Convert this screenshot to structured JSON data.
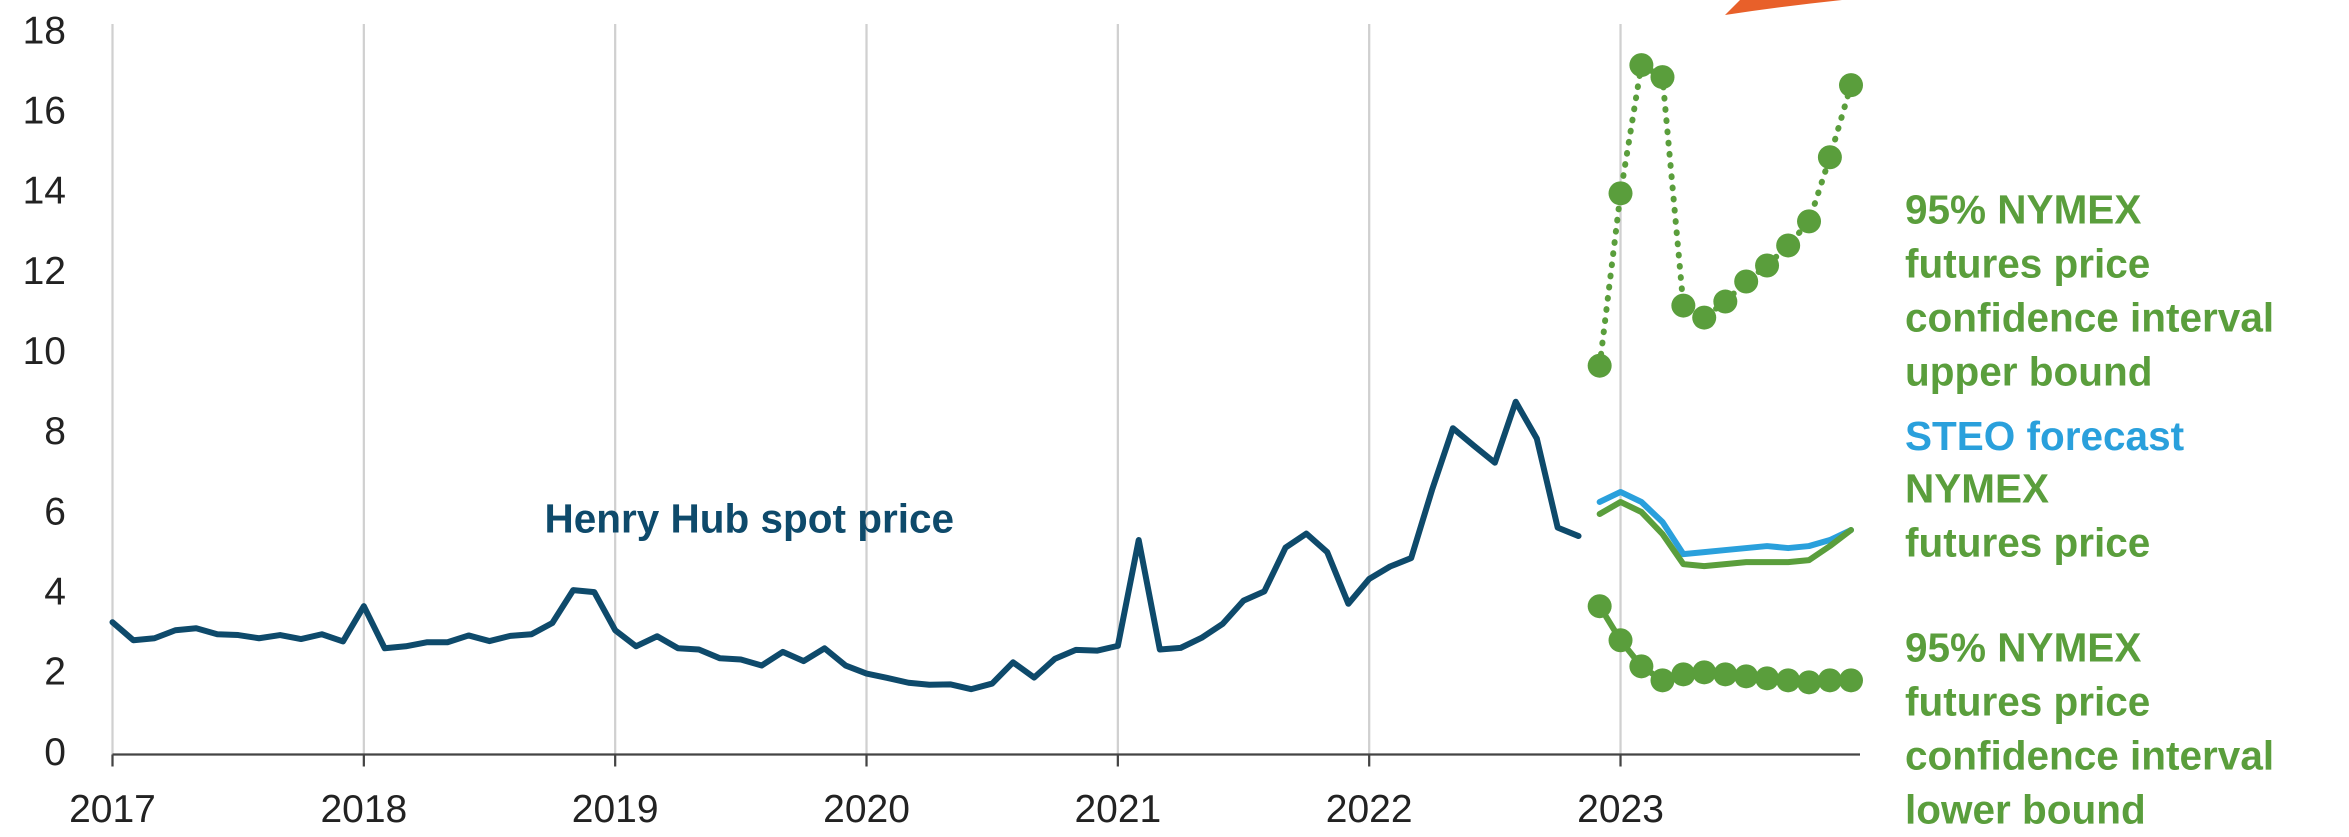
{
  "chart_data": {
    "type": "line",
    "x": [
      2017,
      2017.083,
      2017.167,
      2017.25,
      2017.333,
      2017.417,
      2017.5,
      2017.583,
      2017.667,
      2017.75,
      2017.833,
      2017.917,
      2018,
      2018.083,
      2018.167,
      2018.25,
      2018.333,
      2018.417,
      2018.5,
      2018.583,
      2018.667,
      2018.75,
      2018.833,
      2018.917,
      2019,
      2019.083,
      2019.167,
      2019.25,
      2019.333,
      2019.417,
      2019.5,
      2019.583,
      2019.667,
      2019.75,
      2019.833,
      2019.917,
      2020,
      2020.083,
      2020.167,
      2020.25,
      2020.333,
      2020.417,
      2020.5,
      2020.583,
      2020.667,
      2020.75,
      2020.833,
      2020.917,
      2021,
      2021.083,
      2021.167,
      2021.25,
      2021.333,
      2021.417,
      2021.5,
      2021.583,
      2021.667,
      2021.75,
      2021.833,
      2021.917,
      2022,
      2022.083,
      2022.167,
      2022.25,
      2022.333,
      2022.417,
      2022.5,
      2022.583,
      2022.667,
      2022.75,
      2022.833,
      2022.917,
      2023,
      2023.083,
      2023.167,
      2023.25,
      2023.333,
      2023.417,
      2023.5,
      2023.583,
      2023.667,
      2023.75,
      2023.833,
      2023.917
    ],
    "series": [
      {
        "label": [
          "Henry Hub spot price"
        ],
        "color": "#0e4a6b",
        "style": "solid",
        "values": [
          3.3,
          2.85,
          2.9,
          3.1,
          3.15,
          3.0,
          2.98,
          2.9,
          2.98,
          2.88,
          3.0,
          2.82,
          3.7,
          2.65,
          2.7,
          2.8,
          2.8,
          2.97,
          2.83,
          2.96,
          3.0,
          3.28,
          4.1,
          4.05,
          3.1,
          2.7,
          2.95,
          2.65,
          2.62,
          2.4,
          2.37,
          2.22,
          2.56,
          2.33,
          2.65,
          2.22,
          2.02,
          1.91,
          1.79,
          1.74,
          1.75,
          1.63,
          1.77,
          2.3,
          1.92,
          2.39,
          2.61,
          2.59,
          2.71,
          5.35,
          2.62,
          2.66,
          2.91,
          3.26,
          3.84,
          4.07,
          5.16,
          5.51,
          5.05,
          3.76,
          4.38,
          4.69,
          4.9,
          6.6,
          8.14,
          7.7,
          7.28,
          8.8,
          7.88,
          5.66,
          5.45,
          null,
          null,
          null,
          null,
          null,
          null,
          null,
          null,
          null,
          null,
          null,
          null,
          null
        ]
      },
      {
        "label": [
          "STEO forecast"
        ],
        "color": "#2aa0dc",
        "style": "solid",
        "values": [
          null,
          null,
          null,
          null,
          null,
          null,
          null,
          null,
          null,
          null,
          null,
          null,
          null,
          null,
          null,
          null,
          null,
          null,
          null,
          null,
          null,
          null,
          null,
          null,
          null,
          null,
          null,
          null,
          null,
          null,
          null,
          null,
          null,
          null,
          null,
          null,
          null,
          null,
          null,
          null,
          null,
          null,
          null,
          null,
          null,
          null,
          null,
          null,
          null,
          null,
          null,
          null,
          null,
          null,
          null,
          null,
          null,
          null,
          null,
          null,
          null,
          null,
          null,
          null,
          null,
          null,
          null,
          null,
          null,
          null,
          null,
          6.3,
          6.55,
          6.3,
          5.8,
          5.0,
          5.05,
          5.1,
          5.15,
          5.2,
          5.15,
          5.2,
          5.35,
          5.6
        ]
      },
      {
        "label": [
          "NYMEX",
          "futures price"
        ],
        "color": "#5a9e3c",
        "style": "solid",
        "values": [
          null,
          null,
          null,
          null,
          null,
          null,
          null,
          null,
          null,
          null,
          null,
          null,
          null,
          null,
          null,
          null,
          null,
          null,
          null,
          null,
          null,
          null,
          null,
          null,
          null,
          null,
          null,
          null,
          null,
          null,
          null,
          null,
          null,
          null,
          null,
          null,
          null,
          null,
          null,
          null,
          null,
          null,
          null,
          null,
          null,
          null,
          null,
          null,
          null,
          null,
          null,
          null,
          null,
          null,
          null,
          null,
          null,
          null,
          null,
          null,
          null,
          null,
          null,
          null,
          null,
          null,
          null,
          null,
          null,
          null,
          null,
          6.0,
          6.3,
          6.05,
          5.5,
          4.75,
          4.7,
          4.75,
          4.8,
          4.8,
          4.8,
          4.85,
          5.2,
          5.6
        ]
      },
      {
        "label": [
          "95% NYMEX",
          "futures price",
          "confidence interval",
          "upper bound"
        ],
        "color": "#5a9e3c",
        "style": "dotted",
        "markers": true,
        "values": [
          null,
          null,
          null,
          null,
          null,
          null,
          null,
          null,
          null,
          null,
          null,
          null,
          null,
          null,
          null,
          null,
          null,
          null,
          null,
          null,
          null,
          null,
          null,
          null,
          null,
          null,
          null,
          null,
          null,
          null,
          null,
          null,
          null,
          null,
          null,
          null,
          null,
          null,
          null,
          null,
          null,
          null,
          null,
          null,
          null,
          null,
          null,
          null,
          null,
          null,
          null,
          null,
          null,
          null,
          null,
          null,
          null,
          null,
          null,
          null,
          null,
          null,
          null,
          null,
          null,
          null,
          null,
          null,
          null,
          null,
          null,
          9.7,
          14.0,
          17.2,
          16.9,
          11.2,
          10.9,
          11.3,
          11.8,
          12.2,
          12.7,
          13.3,
          14.9,
          16.7
        ]
      },
      {
        "label": [
          "95% NYMEX",
          "futures price",
          "confidence interval",
          "lower bound"
        ],
        "color": "#5a9e3c",
        "style": "solid",
        "markers": true,
        "values": [
          null,
          null,
          null,
          null,
          null,
          null,
          null,
          null,
          null,
          null,
          null,
          null,
          null,
          null,
          null,
          null,
          null,
          null,
          null,
          null,
          null,
          null,
          null,
          null,
          null,
          null,
          null,
          null,
          null,
          null,
          null,
          null,
          null,
          null,
          null,
          null,
          null,
          null,
          null,
          null,
          null,
          null,
          null,
          null,
          null,
          null,
          null,
          null,
          null,
          null,
          null,
          null,
          null,
          null,
          null,
          null,
          null,
          null,
          null,
          null,
          null,
          null,
          null,
          null,
          null,
          null,
          null,
          null,
          null,
          null,
          null,
          3.7,
          2.85,
          2.2,
          1.85,
          2.0,
          2.05,
          2.0,
          1.95,
          1.9,
          1.85,
          1.8,
          1.85,
          1.85
        ]
      }
    ],
    "xlim": [
      2017,
      2023.917
    ],
    "xticks": [
      2017,
      2018,
      2019,
      2020,
      2021,
      2022,
      2023
    ],
    "ylim": [
      0,
      18
    ],
    "yticks": [
      0,
      2,
      4,
      6,
      8,
      10,
      12,
      14,
      16,
      18
    ],
    "grid": "x"
  }
}
